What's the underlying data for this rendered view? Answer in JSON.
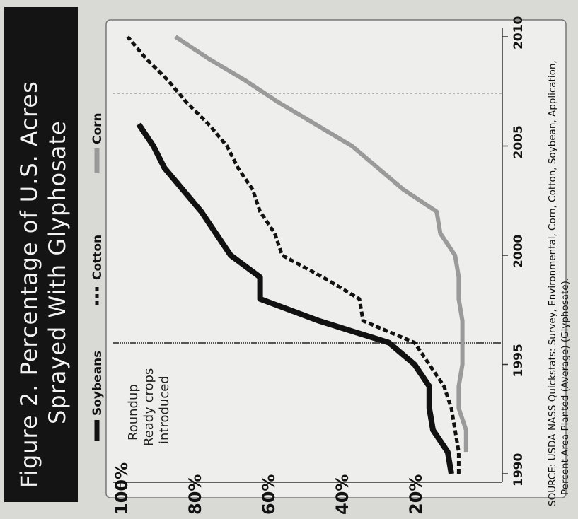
{
  "title_line1": "Figure 2. Percentage of U.S. Acres",
  "title_line2": "Sprayed With Glyphosate",
  "legend": [
    {
      "label": "Soybeans",
      "series": "soybeans"
    },
    {
      "label": "Cotton",
      "series": "cotton"
    },
    {
      "label": "Corn",
      "series": "corn"
    }
  ],
  "annotation": [
    "Roundup",
    "Ready crops",
    "introduced"
  ],
  "source_line1": "SOURCE: USDA-NASS Quickstats: Survey, Environmental, Corn, Cotton, Soybean, Application,",
  "source_line2": "Percent Area Planted (Average) (Glyphosate).",
  "colors": {
    "background": "#d9d9d6",
    "plot_bg": "#eeeeec",
    "title_bg": "#141414",
    "title_text": "#f2f2f2",
    "soybeans": "#111111",
    "cotton": "#111111",
    "corn": "#9a9a9a",
    "marker": "#555555"
  },
  "chart_data": {
    "type": "line",
    "orientation": "rotated-90-counterclockwise",
    "title": "Figure 2. Percentage of U.S. Acres Sprayed With Glyphosate",
    "xlabel": "",
    "ylabel": "",
    "xlim": [
      1990,
      2010
    ],
    "ylim": [
      0,
      100
    ],
    "x_ticks": [
      1990,
      1995,
      2000,
      2005,
      2010
    ],
    "x_tick_labels": [
      "1990",
      "1995",
      "2000",
      "2005",
      "2010"
    ],
    "y_ticks": [
      20,
      40,
      60,
      80,
      100
    ],
    "y_tick_labels": [
      "20%",
      "40%",
      "60%",
      "80%",
      "100%"
    ],
    "grid": false,
    "legend_position": "top",
    "vertical_marker": {
      "x": 1996,
      "label": "Roundup Ready crops introduced"
    },
    "series": [
      {
        "name": "Soybeans",
        "style": "solid-thick",
        "x": [
          1990,
          1991,
          1992,
          1993,
          1994,
          1995,
          1996,
          1997,
          1998,
          1999,
          2000,
          2001,
          2002,
          2003,
          2004,
          2005,
          2006
        ],
        "y": [
          10,
          11,
          15,
          16,
          16,
          20,
          27,
          46,
          62,
          62,
          70,
          74,
          78,
          83,
          88,
          91,
          95
        ]
      },
      {
        "name": "Cotton",
        "style": "dashed",
        "x": [
          1990,
          1991,
          1992,
          1993,
          1994,
          1995,
          1996,
          1997,
          1998,
          1999,
          2000,
          2001,
          2002,
          2003,
          2004,
          2005,
          2006,
          2007,
          2008,
          2009,
          2010
        ],
        "y": [
          8,
          8,
          9,
          10,
          12,
          16,
          20,
          34,
          35,
          45,
          56,
          58,
          62,
          64,
          68,
          71,
          76,
          82,
          87,
          93,
          98
        ]
      },
      {
        "name": "Corn",
        "style": "solid-gray",
        "x": [
          1991,
          1992,
          1993,
          1994,
          1995,
          1996,
          1997,
          1998,
          1999,
          2000,
          2001,
          2002,
          2003,
          2004,
          2005,
          2006,
          2007,
          2008,
          2009,
          2010
        ],
        "y": [
          6,
          6,
          8,
          8,
          7,
          7,
          7,
          8,
          8,
          9,
          13,
          14,
          23,
          30,
          37,
          47,
          57,
          66,
          76,
          85
        ]
      }
    ]
  }
}
